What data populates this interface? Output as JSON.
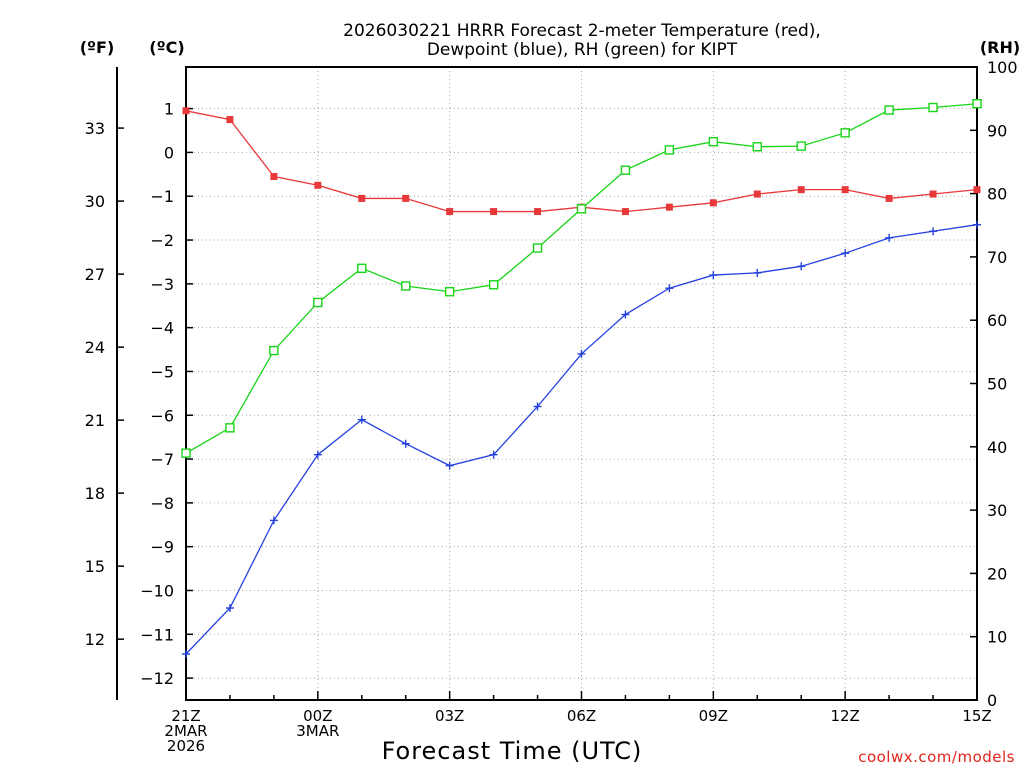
{
  "colors": {
    "temperature": "#e8383a",
    "dewpoint": "#2340e0",
    "rh": "#17d417",
    "credit": "#e0241b",
    "grid": "#aaaaaa"
  },
  "chart_data": {
    "type": "line",
    "title_line1": "2026030221 HRRR Forecast 2-meter Temperature (red),",
    "title_line2": "Dewpoint (blue), RH (green) for KIPT",
    "xlabel": "Forecast Time (UTC)",
    "credit": "coolwx.com/models",
    "units": {
      "fahrenheit": "(ºF)",
      "celsius": "(ºC)",
      "rh": "(RH)"
    },
    "x_hours": [
      0,
      1,
      2,
      3,
      4,
      5,
      6,
      7,
      8,
      9,
      10,
      11,
      12,
      13,
      14,
      15,
      16,
      17,
      18
    ],
    "xlim": [
      0,
      18
    ],
    "x_ticks": [
      {
        "hour": 0,
        "lines": [
          "21Z",
          "2MAR",
          "2026"
        ]
      },
      {
        "hour": 3,
        "lines": [
          "00Z",
          "3MAR"
        ]
      },
      {
        "hour": 6,
        "lines": [
          "03Z"
        ]
      },
      {
        "hour": 9,
        "lines": [
          "06Z"
        ]
      },
      {
        "hour": 12,
        "lines": [
          "09Z"
        ]
      },
      {
        "hour": 15,
        "lines": [
          "12Z"
        ]
      },
      {
        "hour": 18,
        "lines": [
          "15Z"
        ]
      }
    ],
    "celsius_axis": {
      "ylim": [
        -12.5,
        1.95
      ],
      "ticks": [
        "1",
        "0",
        "−1",
        "−2",
        "−3",
        "−4",
        "−5",
        "−6",
        "−7",
        "−8",
        "−9",
        "−10",
        "−11",
        "−12"
      ],
      "tick_values": [
        1,
        0,
        -1,
        -2,
        -3,
        -4,
        -5,
        -6,
        -7,
        -8,
        -9,
        -10,
        -11,
        -12
      ]
    },
    "fahrenheit_axis": {
      "ticks": [
        "33",
        "30",
        "27",
        "24",
        "21",
        "18",
        "15",
        "12"
      ],
      "tick_values": [
        33,
        30,
        27,
        24,
        21,
        18,
        15,
        12
      ]
    },
    "rh_axis": {
      "ylim": [
        0,
        100
      ],
      "ticks": [
        "100",
        "90",
        "80",
        "70",
        "60",
        "50",
        "40",
        "30",
        "20",
        "10",
        "0"
      ],
      "tick_values": [
        100,
        90,
        80,
        70,
        60,
        50,
        40,
        30,
        20,
        10,
        0
      ]
    },
    "series": [
      {
        "name": "Temperature",
        "unit": "C",
        "marker": "filled-square",
        "values": [
          0.95,
          0.75,
          -0.55,
          -0.75,
          -1.05,
          -1.05,
          -1.35,
          -1.35,
          -1.35,
          -1.25,
          -1.35,
          -1.25,
          -1.15,
          -0.95,
          -0.85,
          -0.85,
          -1.05,
          -0.95,
          -0.85
        ]
      },
      {
        "name": "Dewpoint",
        "unit": "C",
        "marker": "plus",
        "values": [
          -11.45,
          -10.4,
          -8.4,
          -6.9,
          -6.1,
          -6.65,
          -7.15,
          -6.9,
          -5.8,
          -4.6,
          -3.7,
          -3.1,
          -2.8,
          -2.75,
          -2.6,
          -2.3,
          -1.95,
          -1.8,
          -1.65
        ]
      },
      {
        "name": "RH",
        "unit": "%",
        "marker": "open-square",
        "values": [
          39.0,
          43.0,
          55.2,
          62.8,
          68.2,
          65.4,
          64.5,
          65.6,
          71.4,
          77.6,
          83.7,
          86.9,
          88.2,
          87.4,
          87.5,
          89.6,
          93.2,
          93.6,
          94.2
        ]
      }
    ]
  }
}
